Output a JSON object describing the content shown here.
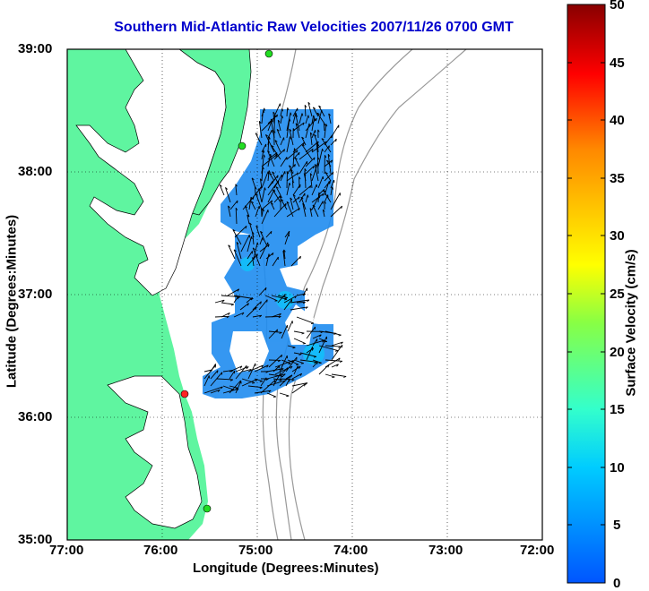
{
  "map": {
    "title": "Southern Mid-Atlantic Raw Velocities 2007/11/26 0700 GMT",
    "xlabel": "Longitude (Degrees:Minutes)",
    "ylabel": "Latitude (Degrees:Minutes)",
    "x_ticks": [
      "77:00",
      "76:00",
      "75:00",
      "74:00",
      "73:00",
      "72:00"
    ],
    "y_ticks": [
      "39:00",
      "38:00",
      "37:00",
      "36:00",
      "35:00"
    ],
    "colors": {
      "land": "#5ff5a0",
      "title": "#0000cc",
      "velocity_field": "#1f8cf0",
      "bathymetry": "#999999"
    },
    "station_colors": [
      "#22dd22",
      "#22dd22",
      "#ff2222",
      "#22dd22"
    ]
  },
  "colorbar": {
    "label": "Surface Velocity (cm/s)",
    "ticks": [
      "50",
      "45",
      "40",
      "35",
      "30",
      "25",
      "20",
      "15",
      "10",
      "5",
      "0"
    ],
    "range": [
      0,
      50
    ]
  }
}
